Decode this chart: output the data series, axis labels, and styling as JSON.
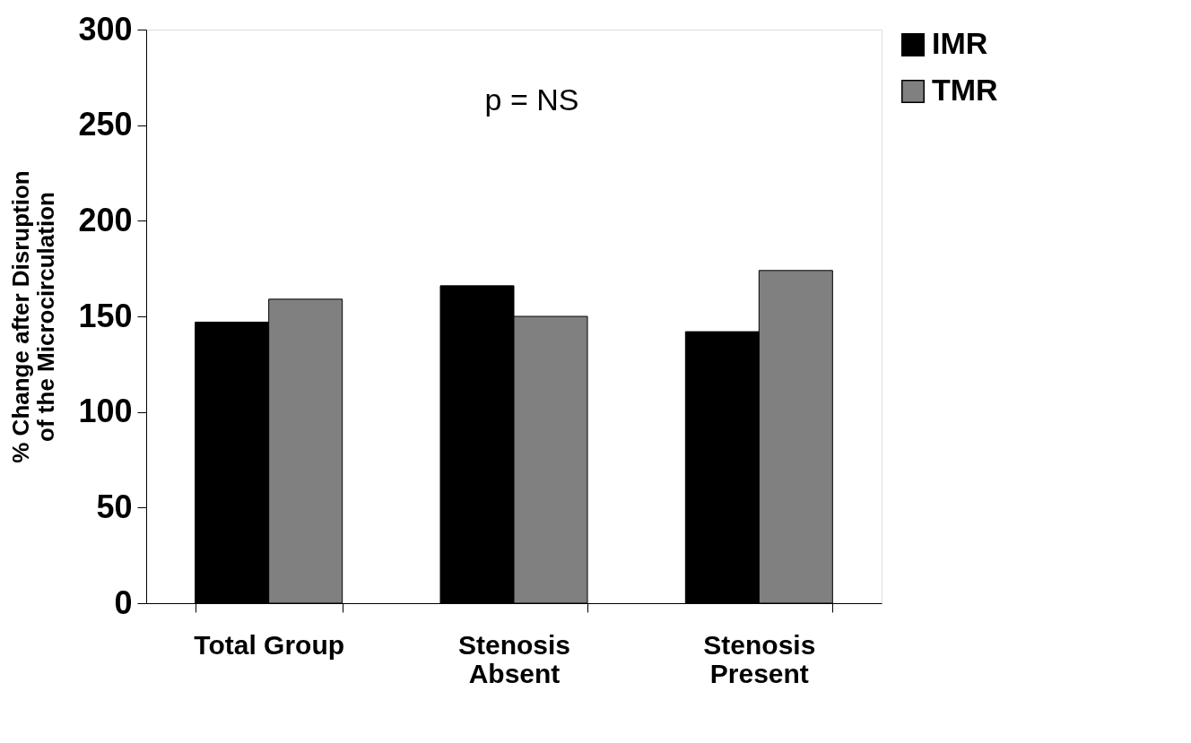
{
  "chart_data": {
    "type": "bar",
    "ylabel": "% Change after Disruption\nof the Microcirculation",
    "categories": [
      "Total Group",
      "Stenosis\nAbsent",
      "Stenosis\nPresent"
    ],
    "series": [
      {
        "name": "IMR",
        "color": "#000000",
        "values": [
          147,
          166,
          142
        ]
      },
      {
        "name": "TMR",
        "color": "#808080",
        "values": [
          159,
          150,
          174
        ]
      }
    ],
    "ylim": [
      0,
      300
    ],
    "yticks": [
      0,
      50,
      100,
      150,
      200,
      250,
      300
    ],
    "grid": false,
    "legend": "right",
    "annotations": [
      "p = NS"
    ]
  }
}
